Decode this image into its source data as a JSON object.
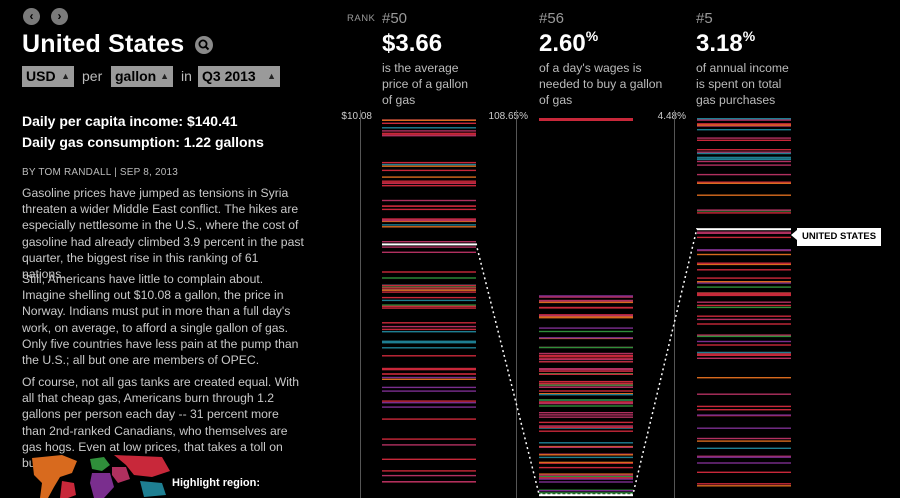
{
  "nav": {
    "prev_glyph": "‹",
    "next_glyph": "›"
  },
  "header": {
    "title": "United States"
  },
  "controls": {
    "currency": "USD",
    "per_word": "per",
    "unit": "gallon",
    "in_word": "in",
    "period": "Q3 2013"
  },
  "stats": {
    "income": "Daily per capita income: $140.41",
    "consumption": "Daily gas consumption: 1.22 gallons"
  },
  "article": {
    "byline": "BY TOM RANDALL | SEP 8, 2013",
    "paragraphs": [
      "Gasoline prices have jumped as tensions in Syria threaten a wider Middle East conflict. The hikes are especially nettlesome in the U.S., where the cost of gasoline had already climbed 3.9 percent in the past quarter, the biggest rise in this ranking of 61 nations.",
      "Still, Americans have little to complain about. Imagine shelling out $10.08 a gallon, the price in Norway. Indians must put in more than a full day's work, on average, to afford a single gallon of gas. Only five countries have less pain at the pump than the U.S.; all but one are members of OPEC.",
      "Of course, not all gas tanks are created equal. With all that cheap gas, Americans burn through 1.2 gallons per person each day -- 31 percent more than 2nd-ranked Canadians, who themselves are gas hogs. Even at low prices, that takes a toll on budgets."
    ]
  },
  "highlight": {
    "label": "Highlight region:"
  },
  "rank_label": "RANK",
  "columns": [
    {
      "rank": "#50",
      "value": "$3.66",
      "sup": "",
      "desc": "is the average price of a gallon of gas",
      "max": "$10.08",
      "us_fraction": 0.33
    },
    {
      "rank": "#56",
      "value": "2.60",
      "sup": "%",
      "desc": "of a day's wages is needed to buy a gallon of gas",
      "max": "108.65%",
      "us_fraction": 0.99
    },
    {
      "rank": "#5",
      "value": "3.18",
      "sup": "%",
      "desc": "of annual income is spent on total gas purchases",
      "max": "4.48%",
      "us_fraction": 0.29
    }
  ],
  "callout": {
    "label": "UNITED STATES"
  },
  "colors": {
    "red": "#c8283a",
    "pink": "#b0305f",
    "teal": "#1e7f92",
    "green": "#2f8f3a",
    "purple": "#7a2e8e",
    "orange": "#d86a1e",
    "highlight": "#ffffff"
  }
}
